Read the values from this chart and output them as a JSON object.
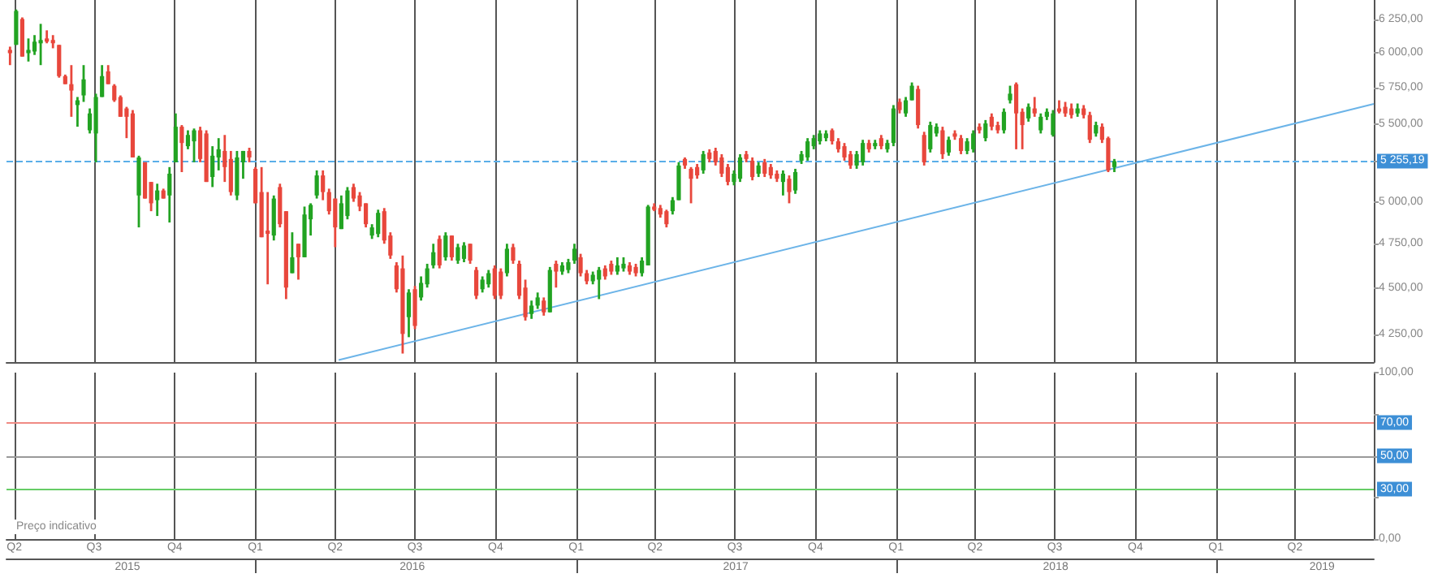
{
  "chart_data": [
    {
      "type": "candlestick",
      "log": "y",
      "grid": "x",
      "tick_labels": "y",
      "xlim": [
        "2015-03-23",
        "2019-06-30"
      ],
      "xticks": [
        {
          "value": "2015-04-01",
          "label": null
        },
        {
          "value": "2015-07-01",
          "label": null
        },
        {
          "value": "2015-10-01",
          "label": null
        },
        {
          "value": "2016-01-01",
          "label": null
        },
        {
          "value": "2016-04-01",
          "label": null
        },
        {
          "value": "2016-07-01",
          "label": null
        },
        {
          "value": "2016-10-01",
          "label": null
        },
        {
          "value": "2017-01-01",
          "label": null
        },
        {
          "value": "2017-04-01",
          "label": null
        },
        {
          "value": "2017-07-01",
          "label": null
        },
        {
          "value": "2017-10-01",
          "label": null
        },
        {
          "value": "2018-01-01",
          "label": null
        },
        {
          "value": "2018-04-01",
          "label": null
        },
        {
          "value": "2018-07-01",
          "label": null
        },
        {
          "value": "2018-10-01",
          "label": null
        },
        {
          "value": "2019-01-01",
          "label": null
        },
        {
          "value": "2019-04-01",
          "label": null
        }
      ],
      "ylim": [
        4110,
        6400
      ],
      "yticks": [
        {
          "value": 4250,
          "label": "4 250,00"
        },
        {
          "value": 4500,
          "label": "4 500,00"
        },
        {
          "value": 4750,
          "label": "4 750,00"
        },
        {
          "value": 5000,
          "label": "5 000,00"
        },
        {
          "value": 5250,
          "label": null
        },
        {
          "value": 5500,
          "label": "5 500,00"
        },
        {
          "value": 5750,
          "label": "5 750,00"
        },
        {
          "value": 6000,
          "label": "6 000,00"
        },
        {
          "value": 6250,
          "label": "6 250,00"
        }
      ],
      "ref_lines": [
        {
          "axis": "y",
          "value": 5255.19,
          "label": "5 255,19",
          "color": "#5aaee8",
          "line_style": "dashed"
        }
      ],
      "x": [
        "2015-03-27",
        "2015-04-03",
        "2015-04-10",
        "2015-04-17",
        "2015-04-24",
        "2015-05-01",
        "2015-05-08",
        "2015-05-15",
        "2015-05-22",
        "2015-05-29",
        "2015-06-05",
        "2015-06-12",
        "2015-06-19",
        "2015-06-26",
        "2015-07-03",
        "2015-07-10",
        "2015-07-17",
        "2015-07-24",
        "2015-07-31",
        "2015-08-07",
        "2015-08-14",
        "2015-08-21",
        "2015-08-28",
        "2015-09-04",
        "2015-09-11",
        "2015-09-18",
        "2015-09-25",
        "2015-10-02",
        "2015-10-09",
        "2015-10-16",
        "2015-10-23",
        "2015-10-30",
        "2015-11-06",
        "2015-11-13",
        "2015-11-20",
        "2015-11-27",
        "2015-12-04",
        "2015-12-11",
        "2015-12-18",
        "2015-12-25",
        "2016-01-01",
        "2016-01-08",
        "2016-01-15",
        "2016-01-22",
        "2016-01-29",
        "2016-02-05",
        "2016-02-12",
        "2016-02-19",
        "2016-02-26",
        "2016-03-04",
        "2016-03-11",
        "2016-03-18",
        "2016-03-25",
        "2016-04-01",
        "2016-04-08",
        "2016-04-15",
        "2016-04-22",
        "2016-04-29",
        "2016-05-06",
        "2016-05-13",
        "2016-05-20",
        "2016-05-27",
        "2016-06-03",
        "2016-06-10",
        "2016-06-17",
        "2016-06-24",
        "2016-07-01",
        "2016-07-08",
        "2016-07-15",
        "2016-07-22",
        "2016-07-29",
        "2016-08-05",
        "2016-08-12",
        "2016-08-19",
        "2016-08-26",
        "2016-09-02",
        "2016-09-09",
        "2016-09-16",
        "2016-09-23",
        "2016-09-30",
        "2016-10-07",
        "2016-10-14",
        "2016-10-21",
        "2016-10-28",
        "2016-11-04",
        "2016-11-11",
        "2016-11-18",
        "2016-11-25",
        "2016-12-02",
        "2016-12-09",
        "2016-12-16",
        "2016-12-23",
        "2016-12-30",
        "2017-01-06",
        "2017-01-13",
        "2017-01-20",
        "2017-01-27",
        "2017-02-03",
        "2017-02-10",
        "2017-02-17",
        "2017-02-24",
        "2017-03-03",
        "2017-03-10",
        "2017-03-17",
        "2017-03-24",
        "2017-03-31",
        "2017-04-07",
        "2017-04-14",
        "2017-04-21",
        "2017-04-28",
        "2017-05-05",
        "2017-05-12",
        "2017-05-19",
        "2017-05-26",
        "2017-06-02",
        "2017-06-09",
        "2017-06-16",
        "2017-06-23",
        "2017-06-30",
        "2017-07-07",
        "2017-07-14",
        "2017-07-21",
        "2017-07-28",
        "2017-08-04",
        "2017-08-11",
        "2017-08-18",
        "2017-08-25",
        "2017-09-01",
        "2017-09-08",
        "2017-09-15",
        "2017-09-22",
        "2017-09-29",
        "2017-10-06",
        "2017-10-13",
        "2017-10-20",
        "2017-10-27",
        "2017-11-03",
        "2017-11-10",
        "2017-11-17",
        "2017-11-24",
        "2017-12-01",
        "2017-12-08",
        "2017-12-15",
        "2017-12-22",
        "2017-12-29",
        "2018-01-05",
        "2018-01-12",
        "2018-01-19",
        "2018-01-26",
        "2018-02-02",
        "2018-02-09",
        "2018-02-16",
        "2018-02-23",
        "2018-03-02",
        "2018-03-09",
        "2018-03-16",
        "2018-03-23",
        "2018-03-30",
        "2018-04-06",
        "2018-04-13",
        "2018-04-20",
        "2018-04-27",
        "2018-05-04",
        "2018-05-11",
        "2018-05-18",
        "2018-05-25",
        "2018-06-01",
        "2018-06-08",
        "2018-06-15",
        "2018-06-22",
        "2018-06-29",
        "2018-07-06",
        "2018-07-13",
        "2018-07-20",
        "2018-07-27",
        "2018-08-03",
        "2018-08-10",
        "2018-08-17",
        "2018-08-24",
        "2018-08-31",
        "2018-09-07"
      ],
      "ohlc": [
        [
          6021,
          6045,
          5910,
          5997
        ],
        [
          6058,
          6326,
          6058,
          6314
        ],
        [
          6253,
          6265,
          5972,
          5972
        ],
        [
          6009,
          6106,
          5936,
          6021
        ],
        [
          6009,
          6131,
          5984,
          6082
        ],
        [
          6070,
          6216,
          5910,
          6094
        ],
        [
          6106,
          6167,
          6070,
          6082
        ],
        [
          6094,
          6131,
          6033,
          6070
        ],
        [
          6058,
          6058,
          5820,
          5831
        ],
        [
          5831,
          5842,
          5774,
          5774
        ],
        [
          5774,
          5910,
          5548,
          5729
        ],
        [
          5628,
          5684,
          5481,
          5661
        ],
        [
          5695,
          5910,
          5650,
          5808
        ],
        [
          5457,
          5605,
          5436,
          5571
        ],
        [
          5436,
          5707,
          5248,
          5684
        ],
        [
          5684,
          5910,
          5684,
          5831
        ],
        [
          5865,
          5910,
          5774,
          5774
        ],
        [
          5763,
          5774,
          5650,
          5661
        ],
        [
          5684,
          5695,
          5548,
          5548
        ],
        [
          5605,
          5616,
          5405,
          5548
        ],
        [
          5571,
          5594,
          5279,
          5279
        ],
        [
          5039,
          5290,
          4846,
          5279
        ],
        [
          5248,
          5248,
          5020,
          5020
        ],
        [
          5123,
          5123,
          4943,
          4991
        ],
        [
          5010,
          5112,
          4914,
          5070
        ],
        [
          5070,
          5081,
          5020,
          5020
        ],
        [
          5039,
          5217,
          4875,
          5175
        ],
        [
          5248,
          5571,
          5248,
          5481
        ],
        [
          5481,
          5492,
          5185,
          5373
        ],
        [
          5352,
          5457,
          5332,
          5426
        ],
        [
          5384,
          5469,
          5248,
          5457
        ],
        [
          5457,
          5481,
          5248,
          5269
        ],
        [
          5436,
          5457,
          5123,
          5123
        ],
        [
          5154,
          5352,
          5091,
          5290
        ],
        [
          5279,
          5405,
          5196,
          5332
        ],
        [
          5321,
          5426,
          5123,
          5217
        ],
        [
          5269,
          5321,
          5039,
          5060
        ],
        [
          5039,
          5321,
          5010,
          5279
        ],
        [
          5248,
          5321,
          5143,
          5321
        ],
        [
          5321,
          5342,
          5248,
          5279
        ],
        [
          5206,
          5217,
          4991,
          4991
        ],
        [
          5060,
          5217,
          4788,
          4788
        ],
        [
          4827,
          5060,
          4520,
          4817
        ],
        [
          4798,
          5039,
          4769,
          5020
        ],
        [
          5091,
          5112,
          4846,
          4865
        ],
        [
          4943,
          4943,
          4439,
          4502
        ],
        [
          4582,
          4817,
          4582,
          4672
        ],
        [
          4750,
          4750,
          4546,
          4672
        ],
        [
          4672,
          4971,
          4672,
          4923
        ],
        [
          4894,
          4991,
          4798,
          4981
        ],
        [
          5039,
          5196,
          5020,
          5164
        ],
        [
          5164,
          5196,
          5010,
          5060
        ],
        [
          5060,
          5081,
          4923,
          4943
        ],
        [
          5020,
          5020,
          4730,
          4846
        ],
        [
          4836,
          5039,
          4836,
          4991
        ],
        [
          4914,
          5091,
          4894,
          5070
        ],
        [
          5091,
          5112,
          5000,
          5020
        ],
        [
          5039,
          5060,
          4943,
          4971
        ],
        [
          4991,
          4991,
          4846,
          4865
        ],
        [
          4798,
          4865,
          4778,
          4846
        ],
        [
          4807,
          4952,
          4788,
          4933
        ],
        [
          4943,
          4962,
          4750,
          4769
        ],
        [
          4798,
          4817,
          4663,
          4682
        ],
        [
          4626,
          4644,
          4475,
          4493
        ],
        [
          4609,
          4682,
          4153,
          4254
        ],
        [
          4342,
          4493,
          4237,
          4475
        ],
        [
          4493,
          4511,
          4279,
          4296
        ],
        [
          4448,
          4564,
          4431,
          4528
        ],
        [
          4520,
          4635,
          4502,
          4609
        ],
        [
          4626,
          4750,
          4609,
          4701
        ],
        [
          4778,
          4798,
          4609,
          4626
        ],
        [
          4672,
          4817,
          4653,
          4798
        ],
        [
          4798,
          4798,
          4653,
          4672
        ],
        [
          4653,
          4750,
          4635,
          4730
        ],
        [
          4663,
          4759,
          4644,
          4740
        ],
        [
          4750,
          4750,
          4635,
          4653
        ],
        [
          4600,
          4617,
          4439,
          4457
        ],
        [
          4493,
          4564,
          4475,
          4546
        ],
        [
          4520,
          4600,
          4502,
          4582
        ],
        [
          4609,
          4626,
          4439,
          4457
        ],
        [
          4591,
          4609,
          4439,
          4457
        ],
        [
          4582,
          4750,
          4564,
          4721
        ],
        [
          4730,
          4750,
          4635,
          4653
        ],
        [
          4635,
          4653,
          4439,
          4457
        ],
        [
          4502,
          4546,
          4324,
          4342
        ],
        [
          4359,
          4431,
          4333,
          4404
        ],
        [
          4404,
          4475,
          4386,
          4448
        ],
        [
          4431,
          4448,
          4350,
          4368
        ],
        [
          4368,
          4617,
          4368,
          4600
        ],
        [
          4635,
          4653,
          4502,
          4591
        ],
        [
          4591,
          4644,
          4573,
          4626
        ],
        [
          4600,
          4663,
          4582,
          4644
        ],
        [
          4653,
          4750,
          4635,
          4721
        ],
        [
          4672,
          4692,
          4564,
          4582
        ],
        [
          4582,
          4600,
          4520,
          4537
        ],
        [
          4537,
          4591,
          4520,
          4573
        ],
        [
          4546,
          4617,
          4439,
          4600
        ],
        [
          4609,
          4626,
          4546,
          4564
        ],
        [
          4635,
          4653,
          4573,
          4591
        ],
        [
          4591,
          4672,
          4573,
          4626
        ],
        [
          4609,
          4672,
          4591,
          4635
        ],
        [
          4626,
          4644,
          4573,
          4591
        ],
        [
          4617,
          4635,
          4564,
          4582
        ],
        [
          4582,
          4672,
          4564,
          4653
        ],
        [
          4626,
          4981,
          4626,
          4971
        ],
        [
          4971,
          4991,
          4943,
          4962
        ],
        [
          4962,
          4981,
          4904,
          4923
        ],
        [
          4943,
          4952,
          4846,
          4865
        ],
        [
          4943,
          5029,
          4923,
          5010
        ],
        [
          5010,
          5248,
          5010,
          5227
        ],
        [
          5269,
          5279,
          5206,
          5227
        ],
        [
          5206,
          5217,
          4991,
          5143
        ],
        [
          5217,
          5237,
          5143,
          5164
        ],
        [
          5196,
          5321,
          5175,
          5300
        ],
        [
          5311,
          5332,
          5248,
          5269
        ],
        [
          5321,
          5342,
          5227,
          5248
        ],
        [
          5279,
          5300,
          5154,
          5175
        ],
        [
          5217,
          5237,
          5102,
          5123
        ],
        [
          5123,
          5196,
          5102,
          5175
        ],
        [
          5143,
          5300,
          5123,
          5279
        ],
        [
          5300,
          5321,
          5248,
          5269
        ],
        [
          5258,
          5279,
          5133,
          5154
        ],
        [
          5175,
          5248,
          5154,
          5227
        ],
        [
          5248,
          5269,
          5154,
          5175
        ],
        [
          5217,
          5237,
          5143,
          5164
        ],
        [
          5175,
          5196,
          5123,
          5143
        ],
        [
          5123,
          5196,
          5039,
          5175
        ],
        [
          5143,
          5164,
          4991,
          5060
        ],
        [
          5070,
          5206,
          5049,
          5185
        ],
        [
          5258,
          5321,
          5237,
          5300
        ],
        [
          5279,
          5405,
          5258,
          5384
        ],
        [
          5352,
          5426,
          5332,
          5405
        ],
        [
          5384,
          5457,
          5363,
          5436
        ],
        [
          5405,
          5457,
          5384,
          5436
        ],
        [
          5457,
          5469,
          5363,
          5384
        ],
        [
          5384,
          5405,
          5311,
          5332
        ],
        [
          5352,
          5373,
          5258,
          5279
        ],
        [
          5300,
          5321,
          5206,
          5227
        ],
        [
          5227,
          5321,
          5206,
          5300
        ],
        [
          5248,
          5394,
          5227,
          5373
        ],
        [
          5373,
          5394,
          5311,
          5332
        ],
        [
          5352,
          5394,
          5332,
          5373
        ],
        [
          5405,
          5426,
          5332,
          5352
        ],
        [
          5332,
          5394,
          5311,
          5373
        ],
        [
          5373,
          5628,
          5352,
          5605
        ],
        [
          5650,
          5673,
          5571,
          5594
        ],
        [
          5571,
          5684,
          5548,
          5661
        ],
        [
          5661,
          5786,
          5661,
          5763
        ],
        [
          5740,
          5763,
          5469,
          5492
        ],
        [
          5426,
          5447,
          5227,
          5248
        ],
        [
          5332,
          5515,
          5311,
          5492
        ],
        [
          5436,
          5503,
          5415,
          5481
        ],
        [
          5457,
          5481,
          5269,
          5300
        ],
        [
          5311,
          5415,
          5290,
          5394
        ],
        [
          5436,
          5457,
          5394,
          5415
        ],
        [
          5405,
          5426,
          5300,
          5321
        ],
        [
          5321,
          5405,
          5300,
          5384
        ],
        [
          5332,
          5457,
          5311,
          5436
        ],
        [
          5481,
          5503,
          5436,
          5457
        ],
        [
          5405,
          5526,
          5384,
          5503
        ],
        [
          5548,
          5571,
          5457,
          5481
        ],
        [
          5492,
          5515,
          5436,
          5457
        ],
        [
          5457,
          5605,
          5436,
          5582
        ],
        [
          5661,
          5763,
          5639,
          5707
        ],
        [
          5774,
          5786,
          5332,
          5571
        ],
        [
          5582,
          5605,
          5332,
          5492
        ],
        [
          5537,
          5639,
          5515,
          5616
        ],
        [
          5605,
          5684,
          5548,
          5571
        ],
        [
          5457,
          5571,
          5436,
          5548
        ],
        [
          5548,
          5605,
          5526,
          5582
        ],
        [
          5426,
          5594,
          5415,
          5571
        ],
        [
          5605,
          5661,
          5571,
          5594
        ],
        [
          5616,
          5650,
          5548,
          5571
        ],
        [
          5605,
          5639,
          5537,
          5560
        ],
        [
          5571,
          5639,
          5548,
          5605
        ],
        [
          5605,
          5628,
          5537,
          5560
        ],
        [
          5560,
          5582,
          5373,
          5394
        ],
        [
          5436,
          5515,
          5415,
          5492
        ],
        [
          5481,
          5503,
          5373,
          5394
        ],
        [
          5405,
          5415,
          5185,
          5196
        ],
        [
          5217,
          5269,
          5185,
          5255
        ]
      ],
      "colors": [
        "#e8473c",
        "#22a322",
        "#e8473c",
        "#22a322",
        "#22a322",
        "#22a322",
        "#e8473c",
        "#e8473c",
        "#e8473c",
        "#e8473c",
        "#e8473c",
        "#22a322",
        "#22a322",
        "#22a322",
        "#22a322",
        "#22a322",
        "#e8473c",
        "#e8473c",
        "#e8473c",
        "#e8473c",
        "#e8473c",
        "#22a322",
        "#e8473c",
        "#e8473c",
        "#22a322",
        "#e8473c",
        "#22a322",
        "#22a322",
        "#e8473c",
        "#22a322",
        "#22a322",
        "#e8473c",
        "#e8473c",
        "#22a322",
        "#22a322",
        "#e8473c",
        "#e8473c",
        "#22a322",
        "#22a322",
        "#e8473c",
        "#e8473c",
        "#e8473c",
        "#e8473c",
        "#22a322",
        "#e8473c",
        "#e8473c",
        "#22a322",
        "#e8473c",
        "#22a322",
        "#22a322",
        "#22a322",
        "#e8473c",
        "#e8473c",
        "#e8473c",
        "#22a322",
        "#22a322",
        "#e8473c",
        "#e8473c",
        "#e8473c",
        "#22a322",
        "#22a322",
        "#e8473c",
        "#e8473c",
        "#e8473c",
        "#e8473c",
        "#22a322",
        "#e8473c",
        "#22a322",
        "#22a322",
        "#22a322",
        "#e8473c",
        "#22a322",
        "#e8473c",
        "#22a322",
        "#22a322",
        "#e8473c",
        "#e8473c",
        "#22a322",
        "#22a322",
        "#e8473c",
        "#e8473c",
        "#22a322",
        "#e8473c",
        "#e8473c",
        "#e8473c",
        "#22a322",
        "#22a322",
        "#e8473c",
        "#22a322",
        "#e8473c",
        "#22a322",
        "#22a322",
        "#22a322",
        "#e8473c",
        "#e8473c",
        "#22a322",
        "#22a322",
        "#e8473c",
        "#e8473c",
        "#22a322",
        "#22a322",
        "#e8473c",
        "#e8473c",
        "#22a322",
        "#22a322",
        "#e8473c",
        "#e8473c",
        "#e8473c",
        "#22a322",
        "#22a322",
        "#e8473c",
        "#e8473c",
        "#e8473c",
        "#22a322",
        "#e8473c",
        "#e8473c",
        "#e8473c",
        "#e8473c",
        "#22a322",
        "#22a322",
        "#e8473c",
        "#e8473c",
        "#22a322",
        "#e8473c",
        "#e8473c",
        "#e8473c",
        "#22a322",
        "#e8473c",
        "#22a322",
        "#22a322",
        "#22a322",
        "#22a322",
        "#22a322",
        "#22a322",
        "#e8473c",
        "#e8473c",
        "#e8473c",
        "#e8473c",
        "#22a322",
        "#22a322",
        "#e8473c",
        "#22a322",
        "#e8473c",
        "#22a322",
        "#22a322",
        "#e8473c",
        "#22a322",
        "#22a322",
        "#e8473c",
        "#e8473c",
        "#22a322",
        "#22a322",
        "#e8473c",
        "#22a322",
        "#e8473c",
        "#e8473c",
        "#22a322",
        "#22a322",
        "#e8473c",
        "#22a322",
        "#e8473c",
        "#e8473c",
        "#22a322",
        "#22a322",
        "#e8473c",
        "#e8473c",
        "#22a322",
        "#e8473c",
        "#22a322",
        "#22a322",
        "#22a322",
        "#e8473c",
        "#e8473c",
        "#e8473c",
        "#22a322",
        "#e8473c",
        "#e8473c",
        "#22a322",
        "#e8473c",
        "#e8473c",
        "#22a322"
      ],
      "series": [
        {
          "type": "line",
          "x": [
            "2016-04-05",
            "2019-06-30"
          ],
          "values": [
            4120,
            5636
          ],
          "color": "#6cb4e8"
        }
      ]
    },
    {
      "type": "line",
      "grid": "x",
      "annotations": [
        "Preço indicativo"
      ],
      "xlim": [
        "2015-03-23",
        "2019-06-30"
      ],
      "xticks": [
        {
          "value": "2015-04-01",
          "label": "Q2"
        },
        {
          "value": "2015-07-01",
          "label": "Q3"
        },
        {
          "value": "2015-10-01",
          "label": "Q4"
        },
        {
          "value": "2016-01-01",
          "label": "Q1"
        },
        {
          "value": "2016-04-01",
          "label": "Q2"
        },
        {
          "value": "2016-07-01",
          "label": "Q3"
        },
        {
          "value": "2016-10-01",
          "label": "Q4"
        },
        {
          "value": "2017-01-01",
          "label": "Q1"
        },
        {
          "value": "2017-04-01",
          "label": "Q2"
        },
        {
          "value": "2017-07-01",
          "label": "Q3"
        },
        {
          "value": "2017-10-01",
          "label": "Q4"
        },
        {
          "value": "2018-01-01",
          "label": "Q1"
        },
        {
          "value": "2018-04-01",
          "label": "Q2"
        },
        {
          "value": "2018-07-01",
          "label": "Q3"
        },
        {
          "value": "2018-10-01",
          "label": "Q4"
        },
        {
          "value": "2019-01-01",
          "label": "Q1"
        },
        {
          "value": "2019-04-01",
          "label": "Q2"
        }
      ],
      "x2ticks": [
        {
          "value": "2015-08-08",
          "label": "2015"
        },
        {
          "value": "2016-01-01",
          "label": null
        },
        {
          "value": "2016-06-28",
          "label": "2016"
        },
        {
          "value": "2017-01-01",
          "label": null
        },
        {
          "value": "2017-07-02",
          "label": "2017"
        },
        {
          "value": "2018-01-01",
          "label": null
        },
        {
          "value": "2018-07-02",
          "label": "2018"
        },
        {
          "value": "2019-01-01",
          "label": null
        },
        {
          "value": "2019-05-02",
          "label": "2019"
        }
      ],
      "ylim": [
        0,
        100
      ],
      "yticks": [
        {
          "value": 0,
          "label": "0,00"
        },
        {
          "value": 25,
          "label": null
        },
        {
          "value": 50,
          "label": null
        },
        {
          "value": 75,
          "label": null
        },
        {
          "value": 100,
          "label": "100,00"
        }
      ],
      "ref_lines": [
        {
          "axis": "y",
          "value": 70,
          "label": "70,00",
          "color": "#f08a84",
          "line_style": "solid"
        },
        {
          "axis": "y",
          "value": 50,
          "label": "50,00",
          "color": "#9a9a9a",
          "line_style": "solid"
        },
        {
          "axis": "y",
          "value": 30,
          "label": "30,00",
          "color": "#66cc66",
          "line_style": "solid"
        }
      ],
      "x2lim": [
        "2015-03-23",
        "2019-06-30"
      ]
    }
  ]
}
